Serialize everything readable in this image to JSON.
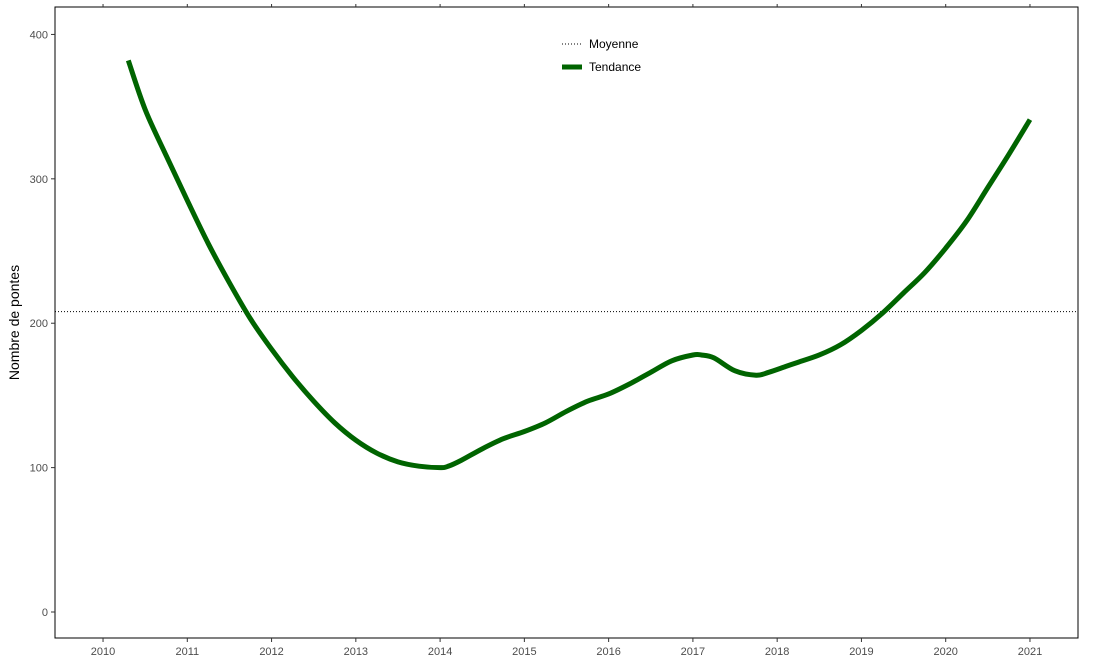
{
  "colors": {
    "trend": "#006400",
    "mean_line": "#000000",
    "panel_border": "#000000",
    "tick_text": "#4d4d4d",
    "background": "#ffffff"
  },
  "chart_data": {
    "type": "line",
    "title": "",
    "xlabel": "",
    "ylabel": "Nombre de pontes",
    "xlim": [
      2009.43,
      2021.57
    ],
    "ylim": [
      -18,
      419
    ],
    "x_ticks": [
      2010,
      2011,
      2012,
      2013,
      2014,
      2015,
      2016,
      2017,
      2018,
      2019,
      2020,
      2021
    ],
    "x_tick_labels": [
      "2010",
      "2011",
      "2012",
      "2013",
      "2014",
      "2015",
      "2016",
      "2017",
      "2018",
      "2019",
      "2020",
      "2021"
    ],
    "y_ticks": [
      0,
      100,
      200,
      300,
      400
    ],
    "y_tick_labels": [
      "0",
      "100",
      "200",
      "300",
      "400"
    ],
    "grid": false,
    "legend_position": "top-center",
    "legend": [
      "Moyenne",
      "Tendance"
    ],
    "series": [
      {
        "name": "Tendance",
        "x": [
          2010.3,
          2010.5,
          2010.75,
          2011.0,
          2011.25,
          2011.5,
          2011.75,
          2012.0,
          2012.25,
          2012.5,
          2012.75,
          2013.0,
          2013.25,
          2013.5,
          2013.75,
          2014.0,
          2014.1,
          2014.25,
          2014.5,
          2014.75,
          2015.0,
          2015.25,
          2015.5,
          2015.75,
          2016.0,
          2016.25,
          2016.5,
          2016.75,
          2017.0,
          2017.1,
          2017.25,
          2017.5,
          2017.75,
          2017.9,
          2018.1,
          2018.25,
          2018.5,
          2018.75,
          2019.0,
          2019.25,
          2019.5,
          2019.75,
          2020.0,
          2020.25,
          2020.5,
          2020.75,
          2021.0
        ],
        "values": [
          382,
          348,
          316,
          285,
          255,
          228,
          203,
          182,
          163,
          146,
          131,
          119,
          110,
          104,
          101,
          100,
          101,
          105,
          113,
          120,
          125,
          131,
          139,
          146,
          151,
          158,
          166,
          174,
          178,
          178,
          176,
          167,
          164,
          166,
          170,
          173,
          178,
          185,
          195,
          207,
          221,
          235,
          252,
          271,
          294,
          317,
          341
        ]
      },
      {
        "name": "Moyenne",
        "type": "hline",
        "value": 208
      }
    ]
  }
}
